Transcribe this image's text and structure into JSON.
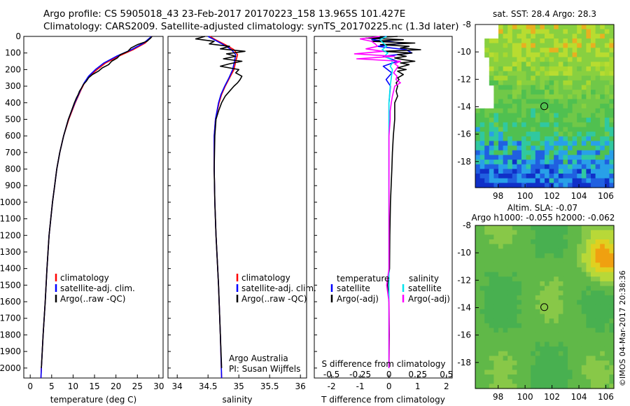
{
  "header": {
    "line1": "Argo profile: CS 5905018_43 23-Feb-2017 20170223_158 13.965S 101.427E",
    "line2": "Climatology: CARS2009. Satellite-adjusted climatology: synTS_20170225.nc (1.3d later)"
  },
  "colors": {
    "clim": "#ff0000",
    "sat": "#0000ff",
    "argo": "#000000",
    "sal_sat": "#00e5ee",
    "sal_argo": "#ff00ff",
    "map_border": "#000000"
  },
  "chart_data": [
    {
      "type": "line",
      "id": "temperature",
      "xlabel": "temperature (deg C)",
      "ylabel": "",
      "xlim": [
        -1.5,
        31
      ],
      "ylim": [
        0,
        2060
      ],
      "x_ticks": [
        "0",
        "5",
        "10",
        "15",
        "20",
        "25",
        "30"
      ],
      "x_tick_values": [
        0,
        5,
        10,
        15,
        20,
        25,
        30
      ],
      "y_ticks": [
        "0",
        "100",
        "200",
        "300",
        "400",
        "500",
        "600",
        "700",
        "800",
        "900",
        "1000",
        "1100",
        "1200",
        "1300",
        "1400",
        "1500",
        "1600",
        "1700",
        "1800",
        "1900",
        "2000"
      ],
      "y_tick_values": [
        0,
        100,
        200,
        300,
        400,
        500,
        600,
        700,
        800,
        900,
        1000,
        1100,
        1200,
        1300,
        1400,
        1500,
        1600,
        1700,
        1800,
        1900,
        2000
      ],
      "legend": [
        "climatology",
        "satellite-adj. clim.",
        "Argo(..raw -QC)"
      ],
      "series": [
        {
          "name": "climatology",
          "color": "#ff0000",
          "depth": [
            0,
            40,
            80,
            120,
            160,
            200,
            240,
            280,
            320,
            360,
            400,
            500,
            600,
            700,
            800,
            900,
            1000,
            1200,
            1400,
            1600,
            1800,
            2000,
            2060
          ],
          "values": [
            28.4,
            26.8,
            24.0,
            20.6,
            17.6,
            15.6,
            13.8,
            12.7,
            11.9,
            11.2,
            10.5,
            9.0,
            7.8,
            6.9,
            6.2,
            5.7,
            5.2,
            4.4,
            3.9,
            3.5,
            3.0,
            2.6,
            2.5
          ]
        },
        {
          "name": "satellite-adj. clim.",
          "color": "#0000ff",
          "depth": [
            0,
            40,
            80,
            120,
            160,
            200,
            240,
            280,
            320,
            360,
            400,
            500,
            600,
            700,
            800,
            900,
            1000,
            1200,
            1400,
            1600,
            1800,
            2000,
            2060
          ],
          "values": [
            28.3,
            26.5,
            23.6,
            20.1,
            17.2,
            15.2,
            13.6,
            12.6,
            11.8,
            11.1,
            10.4,
            8.9,
            7.8,
            6.9,
            6.2,
            5.7,
            5.2,
            4.4,
            3.9,
            3.5,
            3.0,
            2.6,
            2.5
          ]
        },
        {
          "name": "Argo(..raw -QC)",
          "color": "#000000",
          "depth": [
            0,
            10,
            30,
            50,
            70,
            90,
            110,
            130,
            150,
            170,
            190,
            210,
            230,
            250,
            270,
            290,
            310,
            330,
            350,
            370,
            400,
            450,
            500,
            600,
            700,
            800,
            900,
            1000,
            1200,
            1400,
            1600,
            1800,
            2000
          ],
          "values": [
            28.4,
            28.1,
            27.2,
            25.0,
            23.5,
            22.8,
            21.0,
            20.3,
            19.0,
            18.3,
            16.8,
            15.9,
            14.5,
            13.6,
            13.1,
            12.4,
            12.0,
            11.5,
            11.2,
            10.8,
            10.3,
            9.6,
            8.9,
            7.8,
            6.9,
            6.2,
            5.7,
            5.2,
            4.4,
            3.9,
            3.5,
            3.0,
            2.6
          ]
        }
      ]
    },
    {
      "type": "line",
      "id": "salinity",
      "xlabel": "salinity",
      "xlim": [
        33.85,
        36.1
      ],
      "ylim": [
        0,
        2060
      ],
      "x_ticks": [
        "34",
        "34.5",
        "35",
        "35.5",
        "36"
      ],
      "x_tick_values": [
        34,
        34.5,
        35,
        35.5,
        36
      ],
      "legend": [
        "climatology",
        "satellite-adj. clim.",
        "Argo(..raw -QC)"
      ],
      "annotations": [
        "Argo Australia",
        "PI: Susan Wijffels"
      ],
      "series": [
        {
          "name": "climatology",
          "color": "#ff0000",
          "depth": [
            0,
            20,
            50,
            80,
            110,
            150,
            200,
            250,
            300,
            350,
            400,
            500,
            600,
            800,
            1000,
            1200,
            1500,
            1800,
            2060
          ],
          "values": [
            34.53,
            34.62,
            34.78,
            34.92,
            34.98,
            34.95,
            34.92,
            34.85,
            34.78,
            34.72,
            34.68,
            34.62,
            34.6,
            34.6,
            34.61,
            34.63,
            34.67,
            34.7,
            34.72
          ]
        },
        {
          "name": "satellite-adj. clim.",
          "color": "#0000ff",
          "depth": [
            0,
            20,
            50,
            80,
            110,
            150,
            200,
            250,
            300,
            350,
            400,
            500,
            600,
            800,
            1000,
            1200,
            1500,
            1800,
            2060
          ],
          "values": [
            34.5,
            34.6,
            34.75,
            34.88,
            34.95,
            34.93,
            34.9,
            34.84,
            34.77,
            34.71,
            34.67,
            34.62,
            34.6,
            34.6,
            34.61,
            34.63,
            34.67,
            34.7,
            34.72
          ]
        },
        {
          "name": "Argo(..raw -QC)",
          "color": "#000000",
          "depth": [
            0,
            15,
            30,
            45,
            60,
            75,
            90,
            105,
            120,
            135,
            150,
            165,
            180,
            200,
            220,
            240,
            260,
            280,
            300,
            330,
            360,
            400,
            450,
            500,
            600,
            800,
            1000,
            1200,
            1500,
            1800,
            2000
          ],
          "values": [
            34.45,
            34.3,
            34.6,
            34.52,
            34.85,
            34.7,
            35.1,
            34.8,
            34.95,
            34.75,
            35.05,
            34.85,
            34.7,
            35.0,
            34.95,
            35.05,
            35.02,
            34.98,
            34.92,
            34.85,
            34.78,
            34.72,
            34.67,
            34.63,
            34.61,
            34.6,
            34.61,
            34.63,
            34.67,
            34.7,
            34.72
          ]
        }
      ]
    },
    {
      "type": "line",
      "id": "difference",
      "xlabel": "T difference from climatology",
      "top_axis_label": "S difference from climatology",
      "xlim": [
        -2.6,
        2.2
      ],
      "top_xlim": [
        -0.65,
        0.55
      ],
      "ylim": [
        0,
        2060
      ],
      "x_ticks": [
        "-2",
        "-1",
        "0",
        "1",
        "2"
      ],
      "x_tick_values": [
        -2,
        -1,
        0,
        1,
        2
      ],
      "top_ticks": [
        "-0.5",
        "-0.25",
        "0",
        "0.25",
        "0.5"
      ],
      "top_tick_values": [
        -0.5,
        -0.25,
        0,
        0.25,
        0.5
      ],
      "legend_headers": [
        "temperature",
        "salinity"
      ],
      "legend": [
        "satellite",
        "Argo(-adj)",
        "satellite",
        "Argo(-adj)"
      ],
      "series": [
        {
          "name": "temperature satellite",
          "color": "#0000ff",
          "axis": "T",
          "depth": [
            0,
            20,
            40,
            60,
            80,
            100,
            120,
            150,
            180,
            220,
            260,
            300,
            400,
            600,
            1000,
            1500,
            2000
          ],
          "values": [
            -0.1,
            -0.6,
            0.5,
            -0.4,
            0.6,
            0.8,
            -0.2,
            0.3,
            -0.2,
            0.1,
            -0.1,
            0.05,
            0.0,
            0.0,
            0.0,
            0.0,
            0.0
          ]
        },
        {
          "name": "temperature Argo(-adj)",
          "color": "#000000",
          "axis": "T",
          "depth": [
            0,
            10,
            20,
            30,
            40,
            50,
            60,
            70,
            80,
            90,
            100,
            110,
            120,
            130,
            140,
            150,
            160,
            170,
            180,
            190,
            200,
            210,
            220,
            230,
            240,
            250,
            260,
            270,
            280,
            300,
            330,
            360,
            400,
            500,
            600,
            700,
            800,
            1000,
            1200,
            1400,
            1500,
            1600,
            1800,
            2000
          ],
          "values": [
            0.3,
            -0.8,
            0.5,
            -0.6,
            0.9,
            -0.3,
            0.7,
            0.4,
            1.1,
            -0.2,
            0.8,
            0.3,
            0.6,
            0.2,
            0.5,
            0.9,
            0.4,
            0.7,
            0.5,
            0.3,
            0.6,
            0.3,
            0.4,
            0.5,
            0.4,
            0.3,
            0.35,
            0.3,
            0.25,
            0.3,
            0.25,
            0.3,
            0.2,
            0.2,
            0.15,
            0.12,
            0.1,
            0.05,
            0.03,
            0.02,
            -0.05,
            0.0,
            0.01,
            0.0
          ]
        },
        {
          "name": "salinity satellite",
          "color": "#00e5ee",
          "axis": "S",
          "depth": [
            0,
            20,
            40,
            60,
            80,
            100,
            120,
            140,
            160,
            180,
            200,
            250,
            300,
            400,
            600,
            800,
            1000,
            1500,
            2000
          ],
          "values": [
            -0.02,
            -0.08,
            -0.05,
            -0.02,
            -0.06,
            -0.01,
            -0.04,
            0.02,
            0.03,
            0.01,
            0.03,
            0.02,
            0.01,
            0.0,
            0.0,
            0.0,
            0.0,
            0.0,
            0.0
          ]
        },
        {
          "name": "salinity Argo(-adj)",
          "color": "#ff00ff",
          "axis": "S",
          "depth": [
            0,
            15,
            30,
            45,
            60,
            75,
            90,
            105,
            120,
            135,
            150,
            165,
            180,
            200,
            220,
            240,
            260,
            280,
            300,
            330,
            360,
            400,
            450,
            500,
            600,
            800,
            1000,
            1200,
            1400,
            1500,
            1600,
            1800,
            2000
          ],
          "values": [
            -0.08,
            -0.25,
            -0.15,
            -0.12,
            -0.1,
            -0.2,
            -0.05,
            -0.3,
            0.05,
            -0.28,
            0.1,
            0.05,
            0.08,
            0.06,
            0.04,
            0.07,
            0.06,
            0.1,
            0.05,
            0.04,
            0.03,
            0.02,
            0.01,
            0.01,
            0.0,
            0.0,
            0.0,
            0.0,
            0.0,
            -0.02,
            0.0,
            0.0,
            0.0
          ]
        }
      ]
    },
    {
      "type": "heatmap",
      "id": "sst_map",
      "title": "sat. SST: 28.4 Argo: 28.3",
      "x_ticks": [
        "98",
        "100",
        "102",
        "104",
        "106"
      ],
      "x_tick_values": [
        98,
        100,
        102,
        104,
        106
      ],
      "y_ticks": [
        "-8",
        "-10",
        "-12",
        "-14",
        "-16",
        "-18"
      ],
      "y_tick_values": [
        -8,
        -10,
        -12,
        -14,
        -16,
        -18
      ],
      "xlim": [
        96.3,
        106.6
      ],
      "ylim": [
        -19.9,
        -8
      ],
      "profile_location": [
        101.427,
        -13.965
      ]
    },
    {
      "type": "heatmap",
      "id": "sla_map",
      "title": "Altim. SLA: -0.07",
      "subtitle": "Argo h1000: -0.055 h2000: -0.062",
      "x_ticks": [
        "98",
        "100",
        "102",
        "104",
        "106"
      ],
      "x_tick_values": [
        98,
        100,
        102,
        104,
        106
      ],
      "y_ticks": [
        "-8",
        "-10",
        "-12",
        "-14",
        "-16",
        "-18"
      ],
      "y_tick_values": [
        -8,
        -10,
        -12,
        -14,
        -16,
        -18
      ],
      "xlim": [
        96.3,
        106.6
      ],
      "ylim": [
        -19.9,
        -8
      ],
      "profile_location": [
        101.427,
        -13.965
      ]
    }
  ],
  "credit": "©IMOS 04-Mar-2017 20:38:36"
}
